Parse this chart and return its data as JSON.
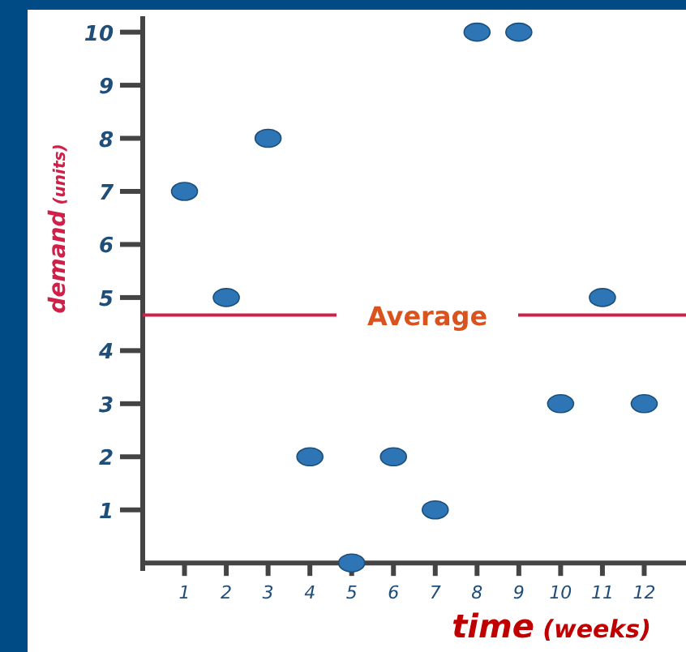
{
  "chart_data": {
    "type": "scatter",
    "xlabel": "time (weeks)",
    "ylabel": "demand (units)",
    "x": [
      1,
      2,
      3,
      4,
      5,
      6,
      7,
      8,
      9,
      10,
      11,
      12
    ],
    "values": [
      7,
      5,
      8,
      2,
      0,
      2,
      1,
      10,
      10,
      3,
      5,
      3
    ],
    "color": "#2e75b6",
    "marker": "circle",
    "xlim": [
      0,
      13
    ],
    "ylim": [
      -0.15,
      10.3
    ],
    "xticks": [
      1,
      2,
      3,
      4,
      5,
      6,
      7,
      8,
      9,
      10,
      11,
      12
    ],
    "yticks": [
      1,
      2,
      3,
      4,
      5,
      6,
      7,
      8,
      9,
      10
    ],
    "grid": false,
    "ref_lines": [
      {
        "axis": "y",
        "value": 4.67,
        "label": "Average",
        "color": "#d0204a"
      }
    ]
  }
}
